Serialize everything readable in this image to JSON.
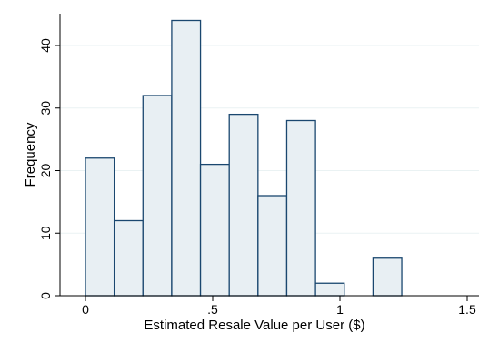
{
  "chart_data": {
    "type": "bar",
    "title": "",
    "xlabel": "Estimated Resale Value per User ($)",
    "ylabel": "Frequency",
    "xlim": [
      -0.1,
      1.5
    ],
    "ylim": [
      0,
      45
    ],
    "x_ticks": [
      0,
      0.5,
      1,
      1.5
    ],
    "x_tick_labels": [
      "0",
      ".5",
      "1",
      "1.5"
    ],
    "y_ticks": [
      0,
      10,
      20,
      30,
      40
    ],
    "y_tick_labels": [
      "0",
      "10",
      "20",
      "30",
      "40"
    ],
    "bin_width": 0.113,
    "bins": [
      {
        "x0": 0.0,
        "x1": 0.113,
        "count": 22
      },
      {
        "x0": 0.113,
        "x1": 0.226,
        "count": 12
      },
      {
        "x0": 0.226,
        "x1": 0.339,
        "count": 32
      },
      {
        "x0": 0.339,
        "x1": 0.452,
        "count": 44
      },
      {
        "x0": 0.452,
        "x1": 0.565,
        "count": 21
      },
      {
        "x0": 0.565,
        "x1": 0.678,
        "count": 29
      },
      {
        "x0": 0.678,
        "x1": 0.791,
        "count": 16
      },
      {
        "x0": 0.791,
        "x1": 0.904,
        "count": 28
      },
      {
        "x0": 0.904,
        "x1": 1.017,
        "count": 2
      },
      {
        "x0": 1.017,
        "x1": 1.13,
        "count": 0
      },
      {
        "x0": 1.13,
        "x1": 1.243,
        "count": 6
      }
    ],
    "grid": true,
    "legend": "none",
    "colors": {
      "bar_fill": "#e8eff3",
      "bar_stroke": "#1a476f",
      "axis": "#000000",
      "grid": "#eaf2f3",
      "background": "#ffffff"
    }
  }
}
